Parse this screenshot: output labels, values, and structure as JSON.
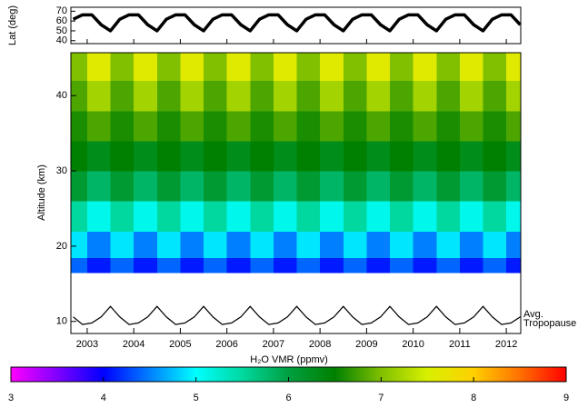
{
  "chart_data": [
    {
      "type": "line",
      "ylabel": "Lat (deg)",
      "x": [
        2002.7,
        2002.9,
        2003.1,
        2003.3,
        2003.5,
        2003.7,
        2003.9,
        2004.1,
        2004.3,
        2004.5,
        2004.7,
        2004.9,
        2005.1,
        2005.3,
        2005.5,
        2005.7,
        2005.9,
        2006.1,
        2006.3,
        2006.5,
        2006.7,
        2006.9,
        2007.1,
        2007.3,
        2007.5,
        2007.7,
        2007.9,
        2008.1,
        2008.3,
        2008.5,
        2008.7,
        2008.9,
        2009.1,
        2009.3,
        2009.5,
        2009.7,
        2009.9,
        2010.1,
        2010.3,
        2010.5,
        2010.7,
        2010.9,
        2011.1,
        2011.3,
        2011.5,
        2011.7,
        2011.9,
        2012.1,
        2012.3
      ],
      "series": [
        {
          "color": "#000000",
          "values": [
            61.8,
            66.3,
            66.3,
            56.2,
            50,
            61.8,
            66.3,
            66.3,
            56.2,
            50,
            61.8,
            66.3,
            66.3,
            56.2,
            50,
            61.8,
            66.3,
            66.3,
            56.2,
            50,
            61.8,
            66.3,
            66.3,
            56.2,
            50,
            61.8,
            66.3,
            66.3,
            56.2,
            50,
            61.8,
            66.3,
            66.3,
            56.2,
            50,
            61.8,
            66.3,
            66.3,
            56.2,
            50,
            61.8,
            66.3,
            66.3,
            56.2,
            50,
            61.8,
            66.3,
            66.3,
            56.2
          ]
        }
      ],
      "xlim": [
        2002.65,
        2012.31
      ],
      "ylim": [
        37,
        74
      ],
      "yticks": [
        40,
        50,
        60,
        70
      ]
    },
    {
      "type": "heatmap",
      "ylabel": "Altitude (km)",
      "x_edges": [
        2002.65,
        2003.0,
        2003.5,
        2004.0,
        2004.5,
        2005.0,
        2005.5,
        2006.0,
        2006.5,
        2007.0,
        2007.5,
        2008.0,
        2008.5,
        2009.0,
        2009.5,
        2010.0,
        2010.5,
        2011.0,
        2011.5,
        2012.0,
        2012.31
      ],
      "y_edges": [
        16.5,
        18.5,
        22,
        26,
        30,
        34,
        38,
        42,
        45.7
      ],
      "z": [
        [
          4.4,
          4.1,
          4.4,
          4.1,
          4.4,
          4.1,
          4.4,
          4.1,
          4.4,
          4.1,
          4.4,
          4.1,
          4.4,
          4.1,
          4.4,
          4.1,
          4.4,
          4.1,
          4.4,
          4.1
        ],
        [
          4.9,
          4.5,
          4.9,
          4.5,
          4.9,
          4.5,
          4.9,
          4.5,
          4.9,
          4.5,
          4.9,
          4.5,
          4.9,
          4.5,
          4.9,
          4.5,
          4.9,
          4.5,
          4.9,
          4.5
        ],
        [
          5.5,
          5.1,
          5.5,
          5.1,
          5.5,
          5.1,
          5.5,
          5.1,
          5.5,
          5.1,
          5.5,
          5.1,
          5.5,
          5.1,
          5.5,
          5.1,
          5.5,
          5.1,
          5.5,
          5.1
        ],
        [
          6.1,
          5.8,
          6.1,
          5.8,
          6.1,
          5.8,
          6.1,
          5.8,
          6.1,
          5.8,
          6.1,
          5.8,
          6.1,
          5.8,
          6.1,
          5.8,
          6.1,
          5.8,
          6.1,
          5.8
        ],
        [
          6.5,
          6.3,
          6.5,
          6.3,
          6.5,
          6.3,
          6.5,
          6.3,
          6.5,
          6.3,
          6.5,
          6.3,
          6.5,
          6.3,
          6.5,
          6.3,
          6.5,
          6.3,
          6.5,
          6.3
        ],
        [
          6.6,
          6.8,
          6.6,
          6.8,
          6.6,
          6.8,
          6.6,
          6.8,
          6.6,
          6.8,
          6.6,
          6.8,
          6.6,
          6.8,
          6.6,
          6.8,
          6.6,
          6.8,
          6.6,
          6.8
        ],
        [
          6.8,
          7.2,
          6.8,
          7.2,
          6.8,
          7.2,
          6.8,
          7.2,
          6.8,
          7.2,
          6.8,
          7.2,
          6.8,
          7.2,
          6.8,
          7.2,
          6.8,
          7.2,
          6.8,
          7.2
        ],
        [
          7.0,
          7.6,
          7.0,
          7.6,
          7.0,
          7.6,
          7.0,
          7.6,
          7.0,
          7.6,
          7.0,
          7.6,
          7.0,
          7.6,
          7.0,
          7.6,
          7.0,
          7.6,
          7.0,
          7.6
        ]
      ],
      "xlim": [
        2002.65,
        2012.31
      ],
      "xticks": [
        2003,
        2004,
        2005,
        2006,
        2007,
        2008,
        2009,
        2010,
        2011,
        2012
      ],
      "ylim": [
        8.4,
        45.7
      ],
      "yticks": [
        10,
        20,
        30,
        40
      ],
      "colorscale": [
        [
          3,
          "#ff00ff"
        ],
        [
          3.5,
          "#8000ff"
        ],
        [
          4,
          "#0000ff"
        ],
        [
          4.5,
          "#0080ff"
        ],
        [
          5,
          "#00ffff"
        ],
        [
          5.5,
          "#00d8a0"
        ],
        [
          6,
          "#00a040"
        ],
        [
          6.5,
          "#008000"
        ],
        [
          7,
          "#80c000"
        ],
        [
          7.5,
          "#d8f000"
        ],
        [
          8,
          "#ffd000"
        ],
        [
          8.5,
          "#ff7000"
        ],
        [
          9,
          "#ff0000"
        ]
      ],
      "colorbar": {
        "label": "H₂O VMR (ppmv)",
        "lim": [
          3,
          9
        ],
        "ticks": [
          3,
          4,
          5,
          6,
          7,
          8,
          9
        ]
      },
      "overlay": {
        "color": "#000000",
        "annotation": [
          "Avg.",
          "Tropopause"
        ],
        "x": [
          2002.7,
          2002.9,
          2003.1,
          2003.3,
          2003.5,
          2003.7,
          2003.9,
          2004.1,
          2004.3,
          2004.5,
          2004.7,
          2004.9,
          2005.1,
          2005.3,
          2005.5,
          2005.7,
          2005.9,
          2006.1,
          2006.3,
          2006.5,
          2006.7,
          2006.9,
          2007.1,
          2007.3,
          2007.5,
          2007.7,
          2007.9,
          2008.1,
          2008.3,
          2008.5,
          2008.7,
          2008.9,
          2009.1,
          2009.3,
          2009.5,
          2009.7,
          2009.9,
          2010.1,
          2010.3,
          2010.5,
          2010.7,
          2010.9,
          2011.1,
          2011.3,
          2011.5,
          2011.7,
          2011.9,
          2012.1,
          2012.3
        ],
        "values": [
          10.6,
          9.6,
          9.8,
          10.6,
          12.0,
          10.6,
          9.6,
          9.8,
          10.6,
          12.0,
          10.6,
          9.6,
          9.8,
          10.6,
          12.0,
          10.6,
          9.6,
          9.8,
          10.6,
          12.0,
          10.6,
          9.6,
          9.8,
          10.6,
          12.0,
          10.6,
          9.6,
          9.8,
          10.6,
          12.0,
          10.6,
          9.6,
          9.8,
          10.6,
          12.0,
          10.6,
          9.6,
          9.8,
          10.6,
          12.0,
          10.6,
          9.6,
          9.8,
          10.6,
          12.0,
          10.6,
          9.6,
          9.8,
          10.6
        ]
      }
    }
  ]
}
